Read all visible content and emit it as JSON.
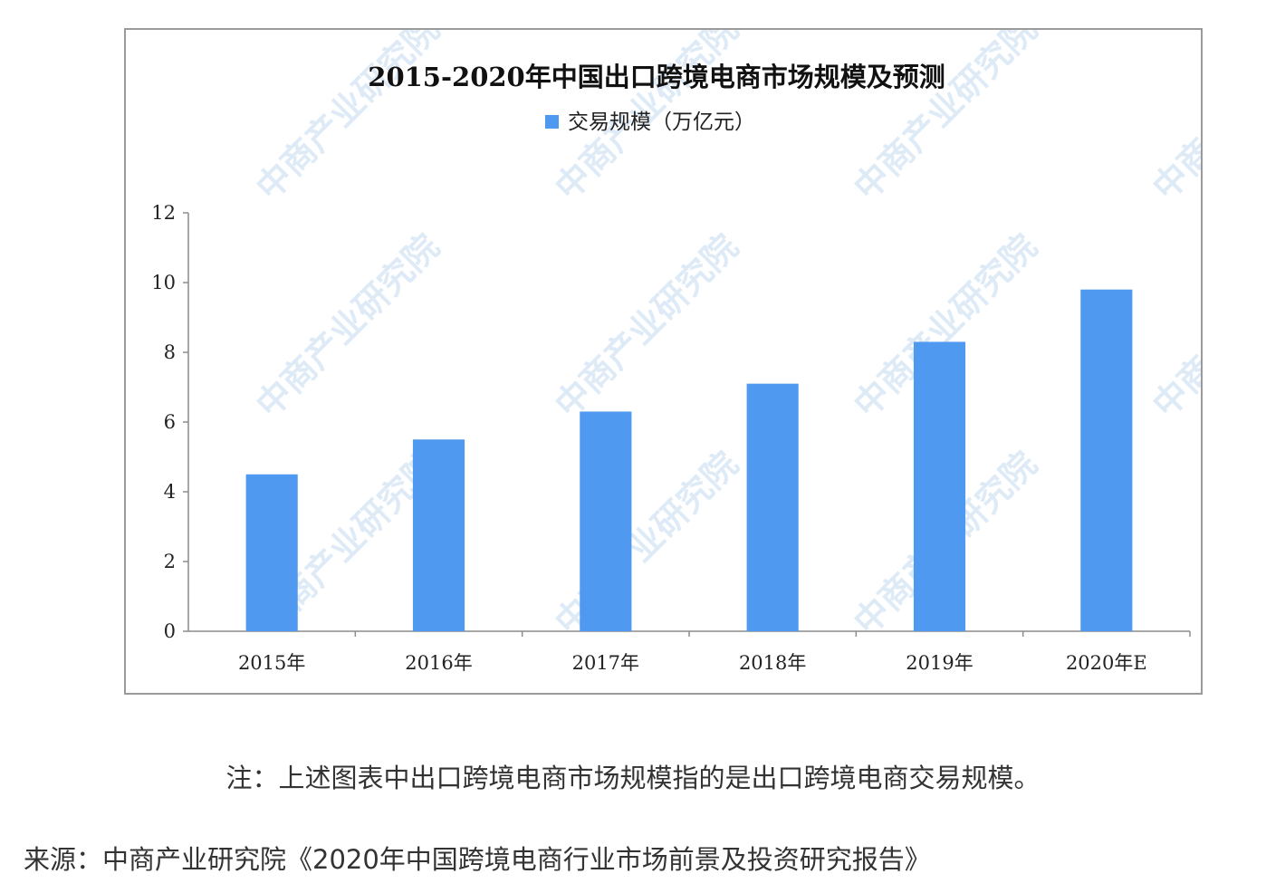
{
  "chart_data": {
    "type": "bar",
    "title": "2015-2020年中国出口跨境电商市场规模及预测",
    "legend_position": "top-center",
    "categories": [
      "2015年",
      "2016年",
      "2017年",
      "2018年",
      "2019年",
      "2020年E"
    ],
    "series": [
      {
        "name": "交易规模（万亿元）",
        "values": [
          4.5,
          5.5,
          6.3,
          7.1,
          8.3,
          9.8
        ]
      }
    ],
    "ylim": [
      0,
      12
    ],
    "yticks": [
      0,
      2,
      4,
      6,
      8,
      10,
      12
    ],
    "grid": false,
    "bar_color": "#4f99f0"
  },
  "watermark": "中商产业研究院",
  "note": "注：上述图表中出口跨境电商市场规模指的是出口跨境电商交易规模。",
  "source": "来源：中商产业研究院《2020年中国跨境电商行业市场前景及投资研究报告》"
}
